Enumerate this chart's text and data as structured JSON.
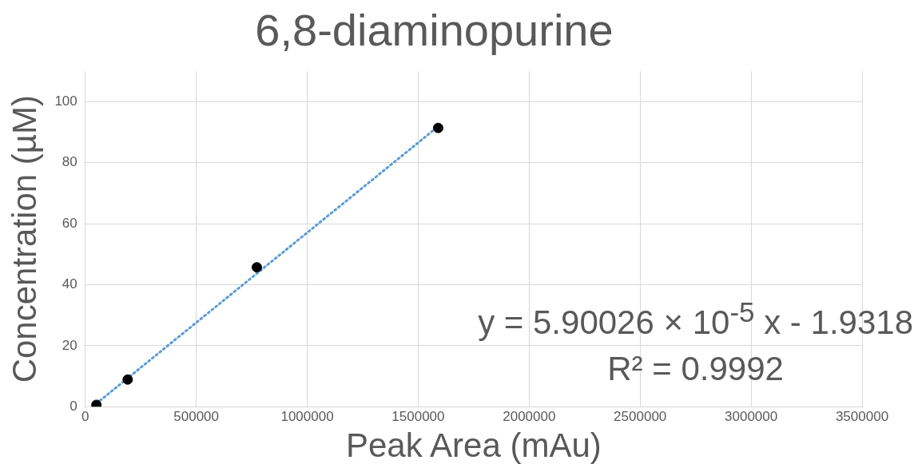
{
  "chart_data": {
    "type": "scatter",
    "title": "6,8-diaminopurine",
    "xlabel": "Peak Area (mAu)",
    "ylabel": "Concentration (µM)",
    "series": [
      {
        "color": "#000000",
        "x": [
          50000,
          191000,
          773000,
          1590000
        ],
        "values": [
          0.6,
          8.9,
          45.7,
          91.4
        ],
        "marker": "circle"
      },
      {
        "type": "line",
        "color": "#5b9bd5",
        "x": [
          50000,
          1590000
        ],
        "values": [
          1.02,
          91.9
        ],
        "line_style": "dotted",
        "marker": "none"
      }
    ],
    "xlim": [
      0,
      3500000
    ],
    "xticks": [
      0,
      500000,
      1000000,
      1500000,
      2000000,
      2500000,
      3000000,
      3500000
    ],
    "ylim": [
      0,
      110
    ],
    "yticks": [
      0,
      20,
      40,
      60,
      80,
      100
    ],
    "grid": true,
    "legend": false,
    "annotations": [
      "y = 5.90026 × 10$^{-5}$ x - 1.9318",
      "R² = 0.9992"
    ]
  }
}
